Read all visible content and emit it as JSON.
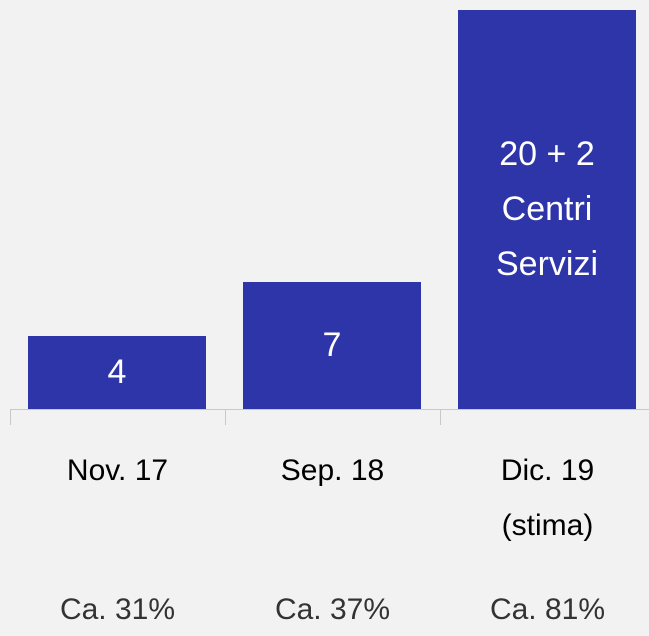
{
  "chart_data": {
    "type": "bar",
    "categories": [
      "Nov. 17",
      "Sep. 18",
      "Dic. 19\n(stima)"
    ],
    "values": [
      4,
      7,
      22
    ],
    "value_labels": [
      "4",
      "7",
      "20 + 2\nCentri\nServizi"
    ],
    "footnotes": [
      "Ca. 31%",
      "Ca. 37%",
      "Ca. 81%"
    ],
    "color": "#2e35a8",
    "ylim": [
      0,
      22
    ]
  }
}
